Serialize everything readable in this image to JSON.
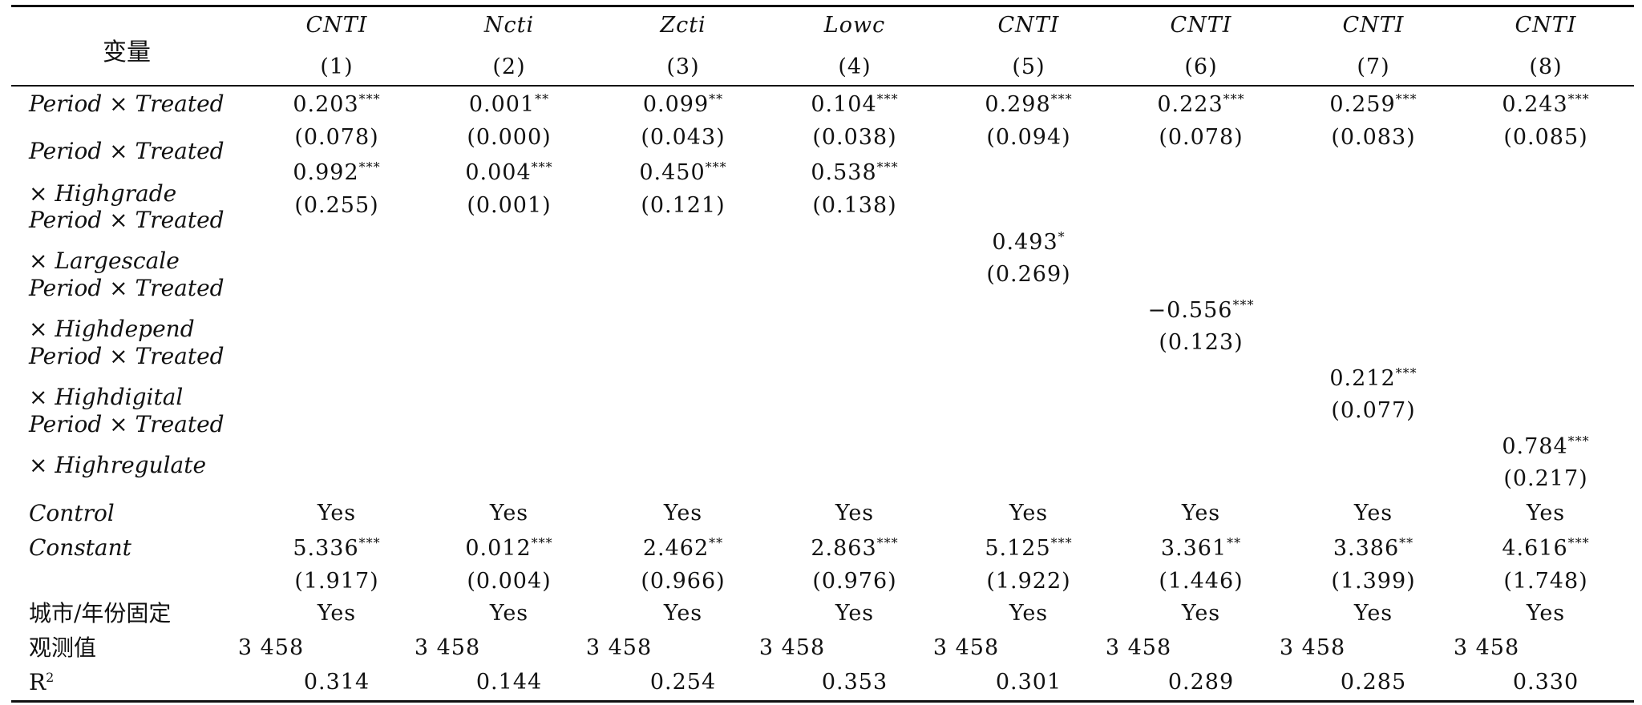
{
  "table": {
    "stub_header": "变量",
    "columns": [
      {
        "name": "CNTI",
        "num": "(1)"
      },
      {
        "name": "Ncti",
        "num": "(2)"
      },
      {
        "name": "Zcti",
        "num": "(3)"
      },
      {
        "name": "Lowc",
        "num": "(4)"
      },
      {
        "name": "CNTI",
        "num": "(5)"
      },
      {
        "name": "CNTI",
        "num": "(6)"
      },
      {
        "name": "CNTI",
        "num": "(7)"
      },
      {
        "name": "CNTI",
        "num": "(8)"
      }
    ],
    "row_labels": {
      "period_treated": "Period × Treated",
      "inter_highgrade_1": "Period × Treated",
      "inter_highgrade_2": "× Highgrade",
      "inter_largescale_1": "Period × Treated",
      "inter_largescale_2": "× Largescale",
      "inter_highdepend_1": "Period × Treated",
      "inter_highdepend_2": "× Highdepend",
      "inter_highdigital_1": "Period × Treated",
      "inter_highdigital_2": "× Highdigital",
      "inter_highregulate_1": "Period × Treated",
      "inter_highregulate_2": "× Highregulate",
      "control": "Control",
      "constant": "Constant",
      "fixed": "城市/年份固定",
      "obs": "观测值",
      "r2": "R",
      "r2_sup": "2"
    },
    "period_treated": {
      "coef": [
        "0.203",
        "0.001",
        "0.099",
        "0.104",
        "0.298",
        "0.223",
        "0.259",
        "0.243"
      ],
      "stars": [
        "***",
        "**",
        "**",
        "***",
        "***",
        "***",
        "***",
        "***"
      ],
      "se": [
        "(0.078)",
        "(0.000)",
        "(0.043)",
        "(0.038)",
        "(0.094)",
        "(0.078)",
        "(0.083)",
        "(0.085)"
      ]
    },
    "highgrade": {
      "coef": [
        "0.992",
        "0.004",
        "0.450",
        "0.538"
      ],
      "stars": [
        "***",
        "***",
        "***",
        "***"
      ],
      "se": [
        "(0.255)",
        "(0.001)",
        "(0.121)",
        "(0.138)"
      ]
    },
    "largescale": {
      "coef": "0.493",
      "stars": "*",
      "se": "(0.269)"
    },
    "highdepend": {
      "coef": "−0.556",
      "stars": "***",
      "se": "(0.123)"
    },
    "highdigital": {
      "coef": "0.212",
      "stars": "***",
      "se": "(0.077)"
    },
    "highregulate": {
      "coef": "0.784",
      "stars": "***",
      "se": "(0.217)"
    },
    "control": [
      "Yes",
      "Yes",
      "Yes",
      "Yes",
      "Yes",
      "Yes",
      "Yes",
      "Yes"
    ],
    "constant": {
      "coef": [
        "5.336",
        "0.012",
        "2.462",
        "2.863",
        "5.125",
        "3.361",
        "3.386",
        "4.616"
      ],
      "stars": [
        "***",
        "***",
        "**",
        "***",
        "***",
        "**",
        "**",
        "***"
      ],
      "se": [
        "(1.917)",
        "(0.004)",
        "(0.966)",
        "(0.976)",
        "(1.922)",
        "(1.446)",
        "(1.399)",
        "(1.748)"
      ]
    },
    "fixed": [
      "Yes",
      "Yes",
      "Yes",
      "Yes",
      "Yes",
      "Yes",
      "Yes",
      "Yes"
    ],
    "obs": [
      "3 458",
      "3 458",
      "3 458",
      "3 458",
      "3 458",
      "3 458",
      "3 458",
      "3 458"
    ],
    "r2": [
      "0.314",
      "0.144",
      "0.254",
      "0.353",
      "0.301",
      "0.289",
      "0.285",
      "0.330"
    ]
  }
}
